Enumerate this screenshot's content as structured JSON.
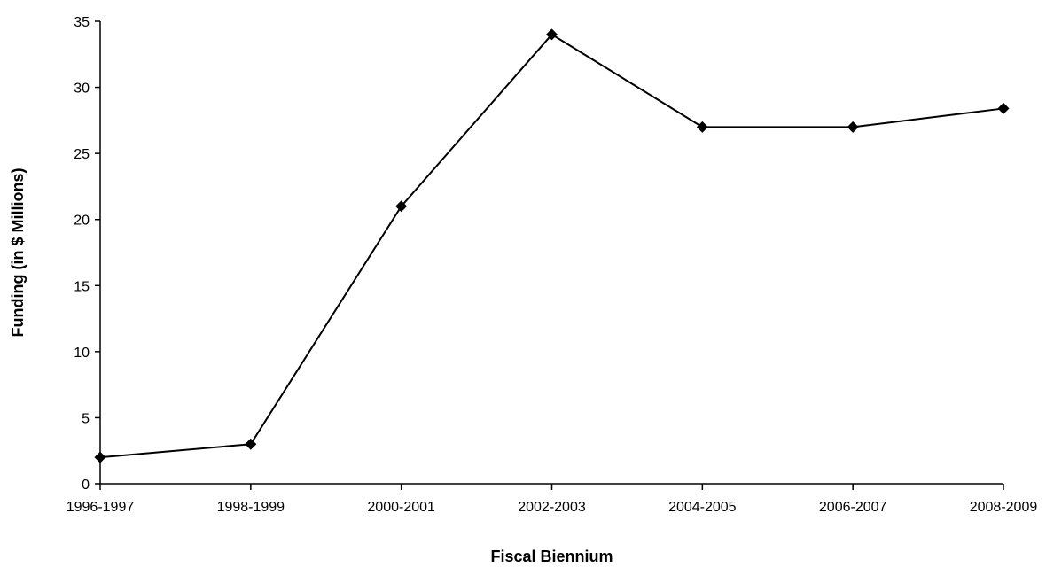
{
  "chart_data": {
    "type": "line",
    "title": "",
    "xlabel": "Fiscal Biennium",
    "ylabel": "Funding (in $ Millions)",
    "categories": [
      "1996-1997",
      "1998-1999",
      "2000-2001",
      "2002-2003",
      "2004-2005",
      "2006-2007",
      "2008-2009"
    ],
    "series": [
      {
        "values": [
          2,
          3,
          21,
          34,
          27,
          27,
          28.4
        ],
        "color": "#000000",
        "marker": "diamond"
      }
    ],
    "ylim": [
      0,
      35
    ],
    "yticks": [
      0,
      5,
      10,
      15,
      20,
      25,
      30,
      35
    ],
    "grid": false,
    "legend": "none"
  }
}
